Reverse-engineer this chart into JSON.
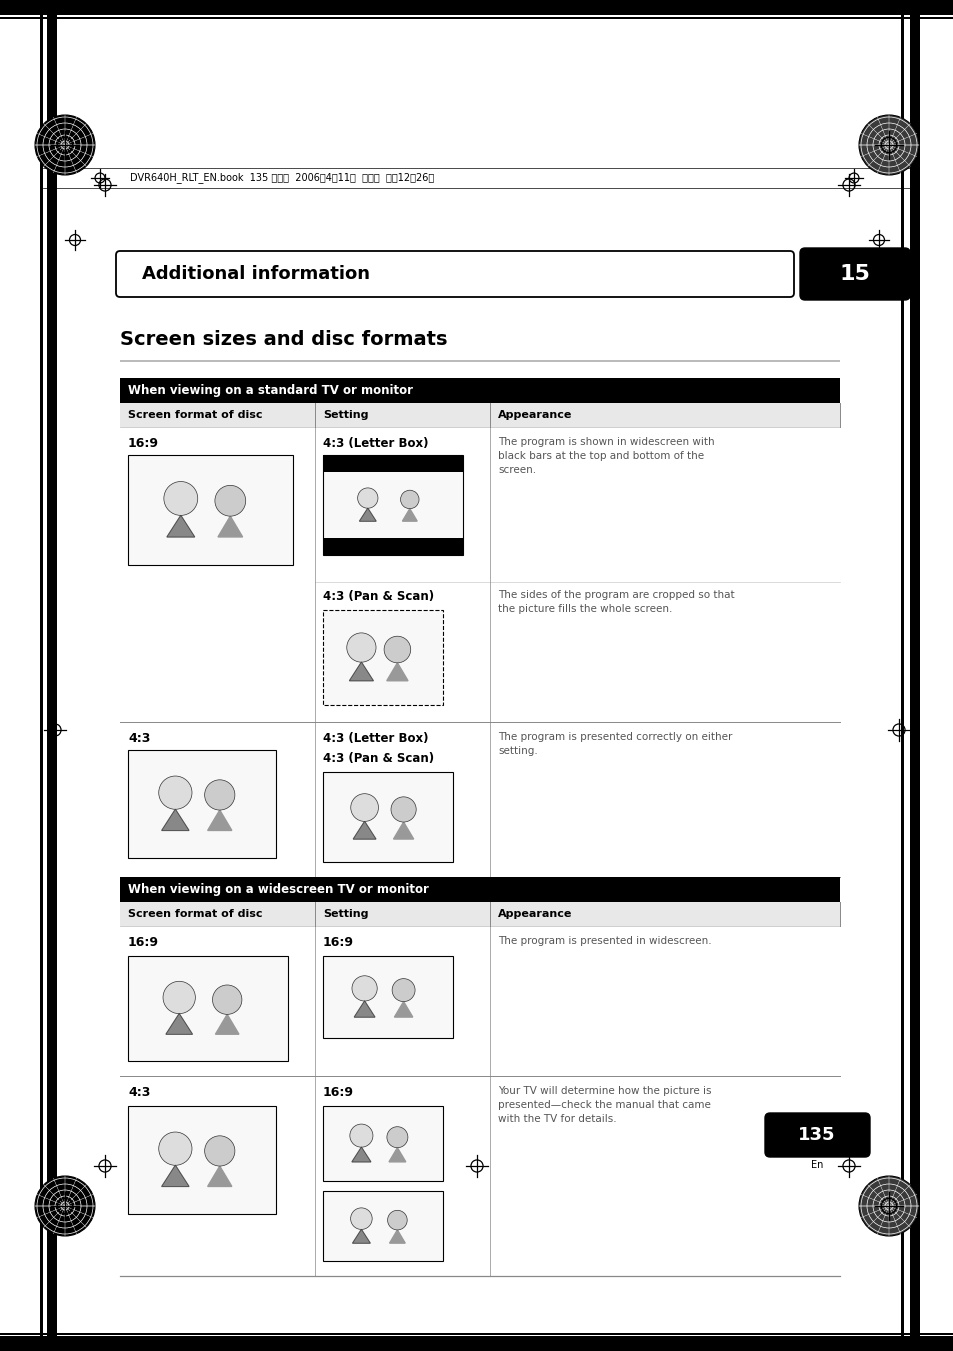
{
  "bg_color": "#ffffff",
  "page_width": 9.54,
  "page_height": 13.51,
  "dpi": 100,
  "header_text": "DVR640H_RLT_EN.book  135 ページ  2006年4月11日  火曜日  午後12時26分",
  "section_title": "Additional information",
  "section_number": "15",
  "page_title": "Screen sizes and disc formats",
  "table1_header": "When viewing on a standard TV or monitor",
  "table2_header": "When viewing on a widescreen TV or monitor",
  "col_headers": [
    "Screen format of disc",
    "Setting",
    "Appearance"
  ],
  "page_number": "135",
  "page_number_sub": "En",
  "text_color_body": "#555555",
  "text_color_dark": "#111111"
}
